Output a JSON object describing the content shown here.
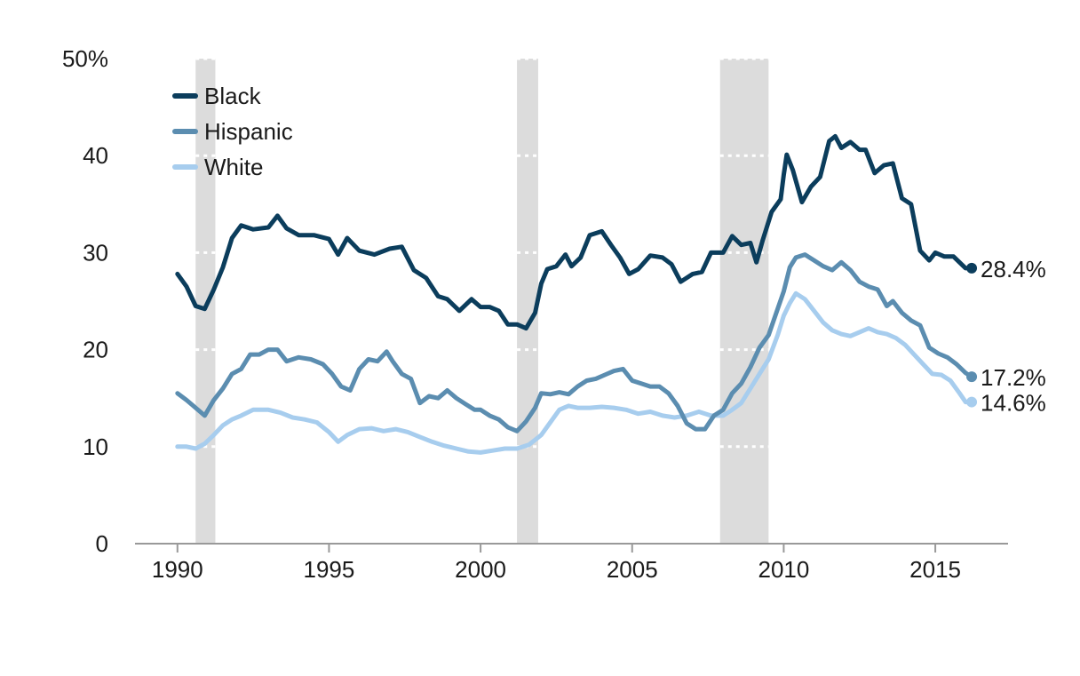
{
  "chart_data": {
    "type": "line",
    "title": "",
    "xlabel": "",
    "ylabel": "",
    "xlim": [
      1988.6,
      2017.4
    ],
    "ylim": [
      0,
      50
    ],
    "y_ticks": [
      {
        "value": 0,
        "label": "0"
      },
      {
        "value": 10,
        "label": "10"
      },
      {
        "value": 20,
        "label": "20"
      },
      {
        "value": 30,
        "label": "30"
      },
      {
        "value": 40,
        "label": "40"
      },
      {
        "value": 50,
        "label": "50%"
      }
    ],
    "x_ticks": [
      {
        "value": 1990,
        "label": "1990"
      },
      {
        "value": 1995,
        "label": "1995"
      },
      {
        "value": 2000,
        "label": "2000"
      },
      {
        "value": 2005,
        "label": "2005"
      },
      {
        "value": 2010,
        "label": "2010"
      },
      {
        "value": 2015,
        "label": "2015"
      }
    ],
    "grid": "horizontal dotted, visible only over shaded bands",
    "legend": "top-left",
    "recessions": [
      {
        "start": 1990.6,
        "end": 1991.25
      },
      {
        "start": 2001.2,
        "end": 2001.9
      },
      {
        "start": 2007.9,
        "end": 2009.5
      }
    ],
    "recession_color": "#dcdcdc",
    "series": [
      {
        "name": "Black",
        "color": "#0b3d5c",
        "end_label": "28.4%",
        "x": [
          1990.0,
          1990.3,
          1990.6,
          1990.9,
          1991.2,
          1991.5,
          1991.8,
          1992.1,
          1992.5,
          1993.0,
          1993.3,
          1993.6,
          1994.0,
          1994.5,
          1995.0,
          1995.3,
          1995.6,
          1996.0,
          1996.5,
          1997.0,
          1997.4,
          1997.8,
          1998.2,
          1998.6,
          1998.9,
          1999.3,
          1999.7,
          2000.0,
          2000.3,
          2000.6,
          2000.9,
          2001.2,
          2001.5,
          2001.8,
          2002.0,
          2002.2,
          2002.5,
          2002.8,
          2003.0,
          2003.3,
          2003.6,
          2004.0,
          2004.3,
          2004.6,
          2004.9,
          2005.2,
          2005.6,
          2006.0,
          2006.3,
          2006.6,
          2007.0,
          2007.3,
          2007.6,
          2008.0,
          2008.3,
          2008.6,
          2008.9,
          2009.1,
          2009.3,
          2009.6,
          2009.9,
          2010.0,
          2010.1,
          2010.3,
          2010.6,
          2010.9,
          2011.2,
          2011.5,
          2011.7,
          2011.9,
          2012.2,
          2012.5,
          2012.7,
          2013.0,
          2013.3,
          2013.6,
          2013.9,
          2014.2,
          2014.5,
          2014.8,
          2015.0,
          2015.3,
          2015.6,
          2016.0,
          2016.2
        ],
        "y": [
          27.8,
          26.5,
          24.5,
          24.2,
          26.2,
          28.5,
          31.5,
          32.8,
          32.4,
          32.6,
          33.8,
          32.5,
          31.8,
          31.8,
          31.4,
          29.8,
          31.5,
          30.2,
          29.8,
          30.4,
          30.6,
          28.2,
          27.4,
          25.5,
          25.2,
          24.0,
          25.2,
          24.4,
          24.4,
          24.0,
          22.6,
          22.6,
          22.2,
          23.8,
          26.8,
          28.3,
          28.6,
          29.8,
          28.6,
          29.5,
          31.8,
          32.2,
          30.8,
          29.5,
          27.8,
          28.3,
          29.7,
          29.5,
          28.8,
          27.0,
          27.8,
          28.0,
          30.0,
          30.0,
          31.7,
          30.8,
          31.0,
          29.0,
          31.2,
          34.2,
          35.5,
          38.0,
          40.1,
          38.5,
          35.2,
          36.8,
          37.8,
          41.5,
          42.0,
          40.8,
          41.4,
          40.6,
          40.6,
          38.2,
          39.0,
          39.2,
          35.6,
          35.0,
          30.2,
          29.2,
          30.0,
          29.6,
          29.6,
          28.4,
          28.4
        ]
      },
      {
        "name": "Hispanic",
        "color": "#5b8db0",
        "end_label": "17.2%",
        "x": [
          1990.0,
          1990.3,
          1990.6,
          1990.9,
          1991.2,
          1991.5,
          1991.8,
          1992.1,
          1992.4,
          1992.7,
          1993.0,
          1993.3,
          1993.6,
          1994.0,
          1994.4,
          1994.8,
          1995.1,
          1995.4,
          1995.7,
          1996.0,
          1996.3,
          1996.6,
          1996.9,
          1997.1,
          1997.4,
          1997.7,
          1998.0,
          1998.3,
          1998.6,
          1998.9,
          1999.2,
          1999.5,
          1999.8,
          2000.0,
          2000.3,
          2000.6,
          2000.9,
          2001.2,
          2001.5,
          2001.8,
          2002.0,
          2002.3,
          2002.6,
          2002.9,
          2003.2,
          2003.5,
          2003.8,
          2004.1,
          2004.4,
          2004.7,
          2005.0,
          2005.3,
          2005.6,
          2005.9,
          2006.2,
          2006.5,
          2006.8,
          2007.1,
          2007.4,
          2007.7,
          2008.0,
          2008.3,
          2008.6,
          2008.9,
          2009.2,
          2009.5,
          2009.8,
          2010.0,
          2010.2,
          2010.4,
          2010.7,
          2011.0,
          2011.3,
          2011.6,
          2011.9,
          2012.2,
          2012.5,
          2012.8,
          2013.1,
          2013.4,
          2013.6,
          2013.9,
          2014.2,
          2014.5,
          2014.8,
          2015.1,
          2015.4,
          2015.7,
          2016.0,
          2016.2
        ],
        "y": [
          15.5,
          14.8,
          14.0,
          13.2,
          14.8,
          16.0,
          17.5,
          18.0,
          19.5,
          19.5,
          20.0,
          20.0,
          18.8,
          19.2,
          19.0,
          18.5,
          17.5,
          16.2,
          15.8,
          18.0,
          19.0,
          18.8,
          19.8,
          18.8,
          17.5,
          17.0,
          14.5,
          15.2,
          15.0,
          15.8,
          15.0,
          14.4,
          13.8,
          13.8,
          13.2,
          12.8,
          12.0,
          11.6,
          12.6,
          14.0,
          15.5,
          15.4,
          15.6,
          15.4,
          16.2,
          16.8,
          17.0,
          17.4,
          17.8,
          18.0,
          16.8,
          16.5,
          16.2,
          16.2,
          15.5,
          14.2,
          12.4,
          11.8,
          11.8,
          13.2,
          13.8,
          15.5,
          16.5,
          18.2,
          20.2,
          21.5,
          24.2,
          26.0,
          28.5,
          29.5,
          29.8,
          29.2,
          28.6,
          28.2,
          29.0,
          28.2,
          27.0,
          26.5,
          26.2,
          24.5,
          25.0,
          23.8,
          23.0,
          22.5,
          20.2,
          19.6,
          19.2,
          18.5,
          17.6,
          17.2
        ]
      },
      {
        "name": "White",
        "color": "#a7cdee",
        "end_label": "14.6%",
        "x": [
          1990.0,
          1990.3,
          1990.6,
          1990.9,
          1991.2,
          1991.5,
          1991.8,
          1992.1,
          1992.5,
          1993.0,
          1993.4,
          1993.8,
          1994.2,
          1994.6,
          1995.0,
          1995.3,
          1995.6,
          1996.0,
          1996.4,
          1996.8,
          1997.2,
          1997.6,
          1998.0,
          1998.4,
          1998.8,
          1999.2,
          1999.6,
          2000.0,
          2000.4,
          2000.8,
          2001.2,
          2001.6,
          2002.0,
          2002.3,
          2002.6,
          2002.9,
          2003.2,
          2003.6,
          2004.0,
          2004.4,
          2004.8,
          2005.2,
          2005.6,
          2006.0,
          2006.4,
          2006.8,
          2007.2,
          2007.6,
          2008.0,
          2008.3,
          2008.6,
          2008.9,
          2009.2,
          2009.5,
          2009.8,
          2010.0,
          2010.2,
          2010.4,
          2010.7,
          2011.0,
          2011.3,
          2011.6,
          2011.9,
          2012.2,
          2012.5,
          2012.8,
          2013.1,
          2013.4,
          2013.7,
          2014.0,
          2014.3,
          2014.6,
          2014.9,
          2015.2,
          2015.5,
          2015.8,
          2016.0,
          2016.2
        ],
        "y": [
          10.0,
          10.0,
          9.8,
          10.3,
          11.2,
          12.2,
          12.8,
          13.2,
          13.8,
          13.8,
          13.5,
          13.0,
          12.8,
          12.5,
          11.5,
          10.5,
          11.2,
          11.8,
          11.9,
          11.6,
          11.8,
          11.5,
          11.0,
          10.5,
          10.1,
          9.8,
          9.5,
          9.4,
          9.6,
          9.8,
          9.8,
          10.2,
          11.2,
          12.5,
          13.8,
          14.2,
          14.0,
          14.0,
          14.1,
          14.0,
          13.8,
          13.4,
          13.6,
          13.2,
          13.0,
          13.2,
          13.6,
          13.2,
          13.2,
          13.8,
          14.5,
          16.0,
          17.5,
          19.0,
          21.5,
          23.5,
          24.8,
          25.8,
          25.2,
          24.0,
          22.8,
          22.0,
          21.6,
          21.4,
          21.8,
          22.2,
          21.8,
          21.6,
          21.2,
          20.5,
          19.5,
          18.5,
          17.5,
          17.4,
          16.8,
          15.5,
          14.6,
          14.6
        ]
      }
    ]
  }
}
